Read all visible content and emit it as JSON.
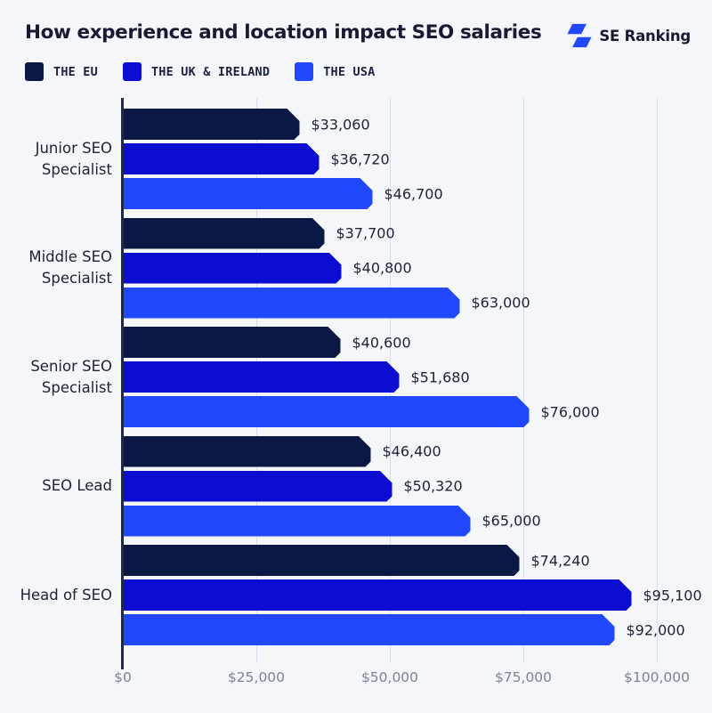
{
  "header": {
    "title": "How experience and location impact SEO salaries",
    "brand": "SE Ranking"
  },
  "colors": {
    "background": "#f5f6fa",
    "eu": "#0c1844",
    "uk_ireland": "#0d0cd1",
    "usa": "#2148fa",
    "gridline": "#d9dcec",
    "axis": "#232942",
    "text": "#1d2235",
    "tick_text": "#7b8296",
    "brand_icon": "#2148fa"
  },
  "legend": [
    {
      "label": "THE EU",
      "color": "#0c1844"
    },
    {
      "label": "THE UK & IRELAND",
      "color": "#0d0cd1"
    },
    {
      "label": "THE USA",
      "color": "#2148fa"
    }
  ],
  "chart_data": {
    "type": "bar",
    "orientation": "horizontal",
    "title": "How experience and location impact SEO salaries",
    "xlabel": "",
    "ylabel": "",
    "xlim": [
      0,
      100000
    ],
    "grid": true,
    "legend_position": "top-left",
    "categories": [
      "Junior SEO\nSpecialist",
      "Middle SEO\nSpecialist",
      "Senior SEO\nSpecialist",
      "SEO Lead",
      "Head of SEO"
    ],
    "series": [
      {
        "name": "THE EU",
        "color": "#0c1844",
        "values": [
          33060,
          37700,
          40600,
          46400,
          74240
        ],
        "labels": [
          "$33,060",
          "$37,700",
          "$40,600",
          "$46,400",
          "$74,240"
        ]
      },
      {
        "name": "THE UK & IRELAND",
        "color": "#0d0cd1",
        "values": [
          36720,
          40800,
          51680,
          50320,
          95100
        ],
        "labels": [
          "$36,720",
          "$40,800",
          "$51,680",
          "$50,320",
          "$95,100"
        ]
      },
      {
        "name": "THE USA",
        "color": "#2148fa",
        "values": [
          46700,
          63000,
          76000,
          65000,
          92000
        ],
        "labels": [
          "$46,700",
          "$63,000",
          "$76,000",
          "$65,000",
          "$92,000"
        ]
      }
    ],
    "x_ticks": [
      {
        "value": 0,
        "label": "$0"
      },
      {
        "value": 25000,
        "label": "$25,000"
      },
      {
        "value": 50000,
        "label": "$50,000"
      },
      {
        "value": 75000,
        "label": "$75,000"
      },
      {
        "value": 100000,
        "label": "$100,000"
      }
    ]
  }
}
